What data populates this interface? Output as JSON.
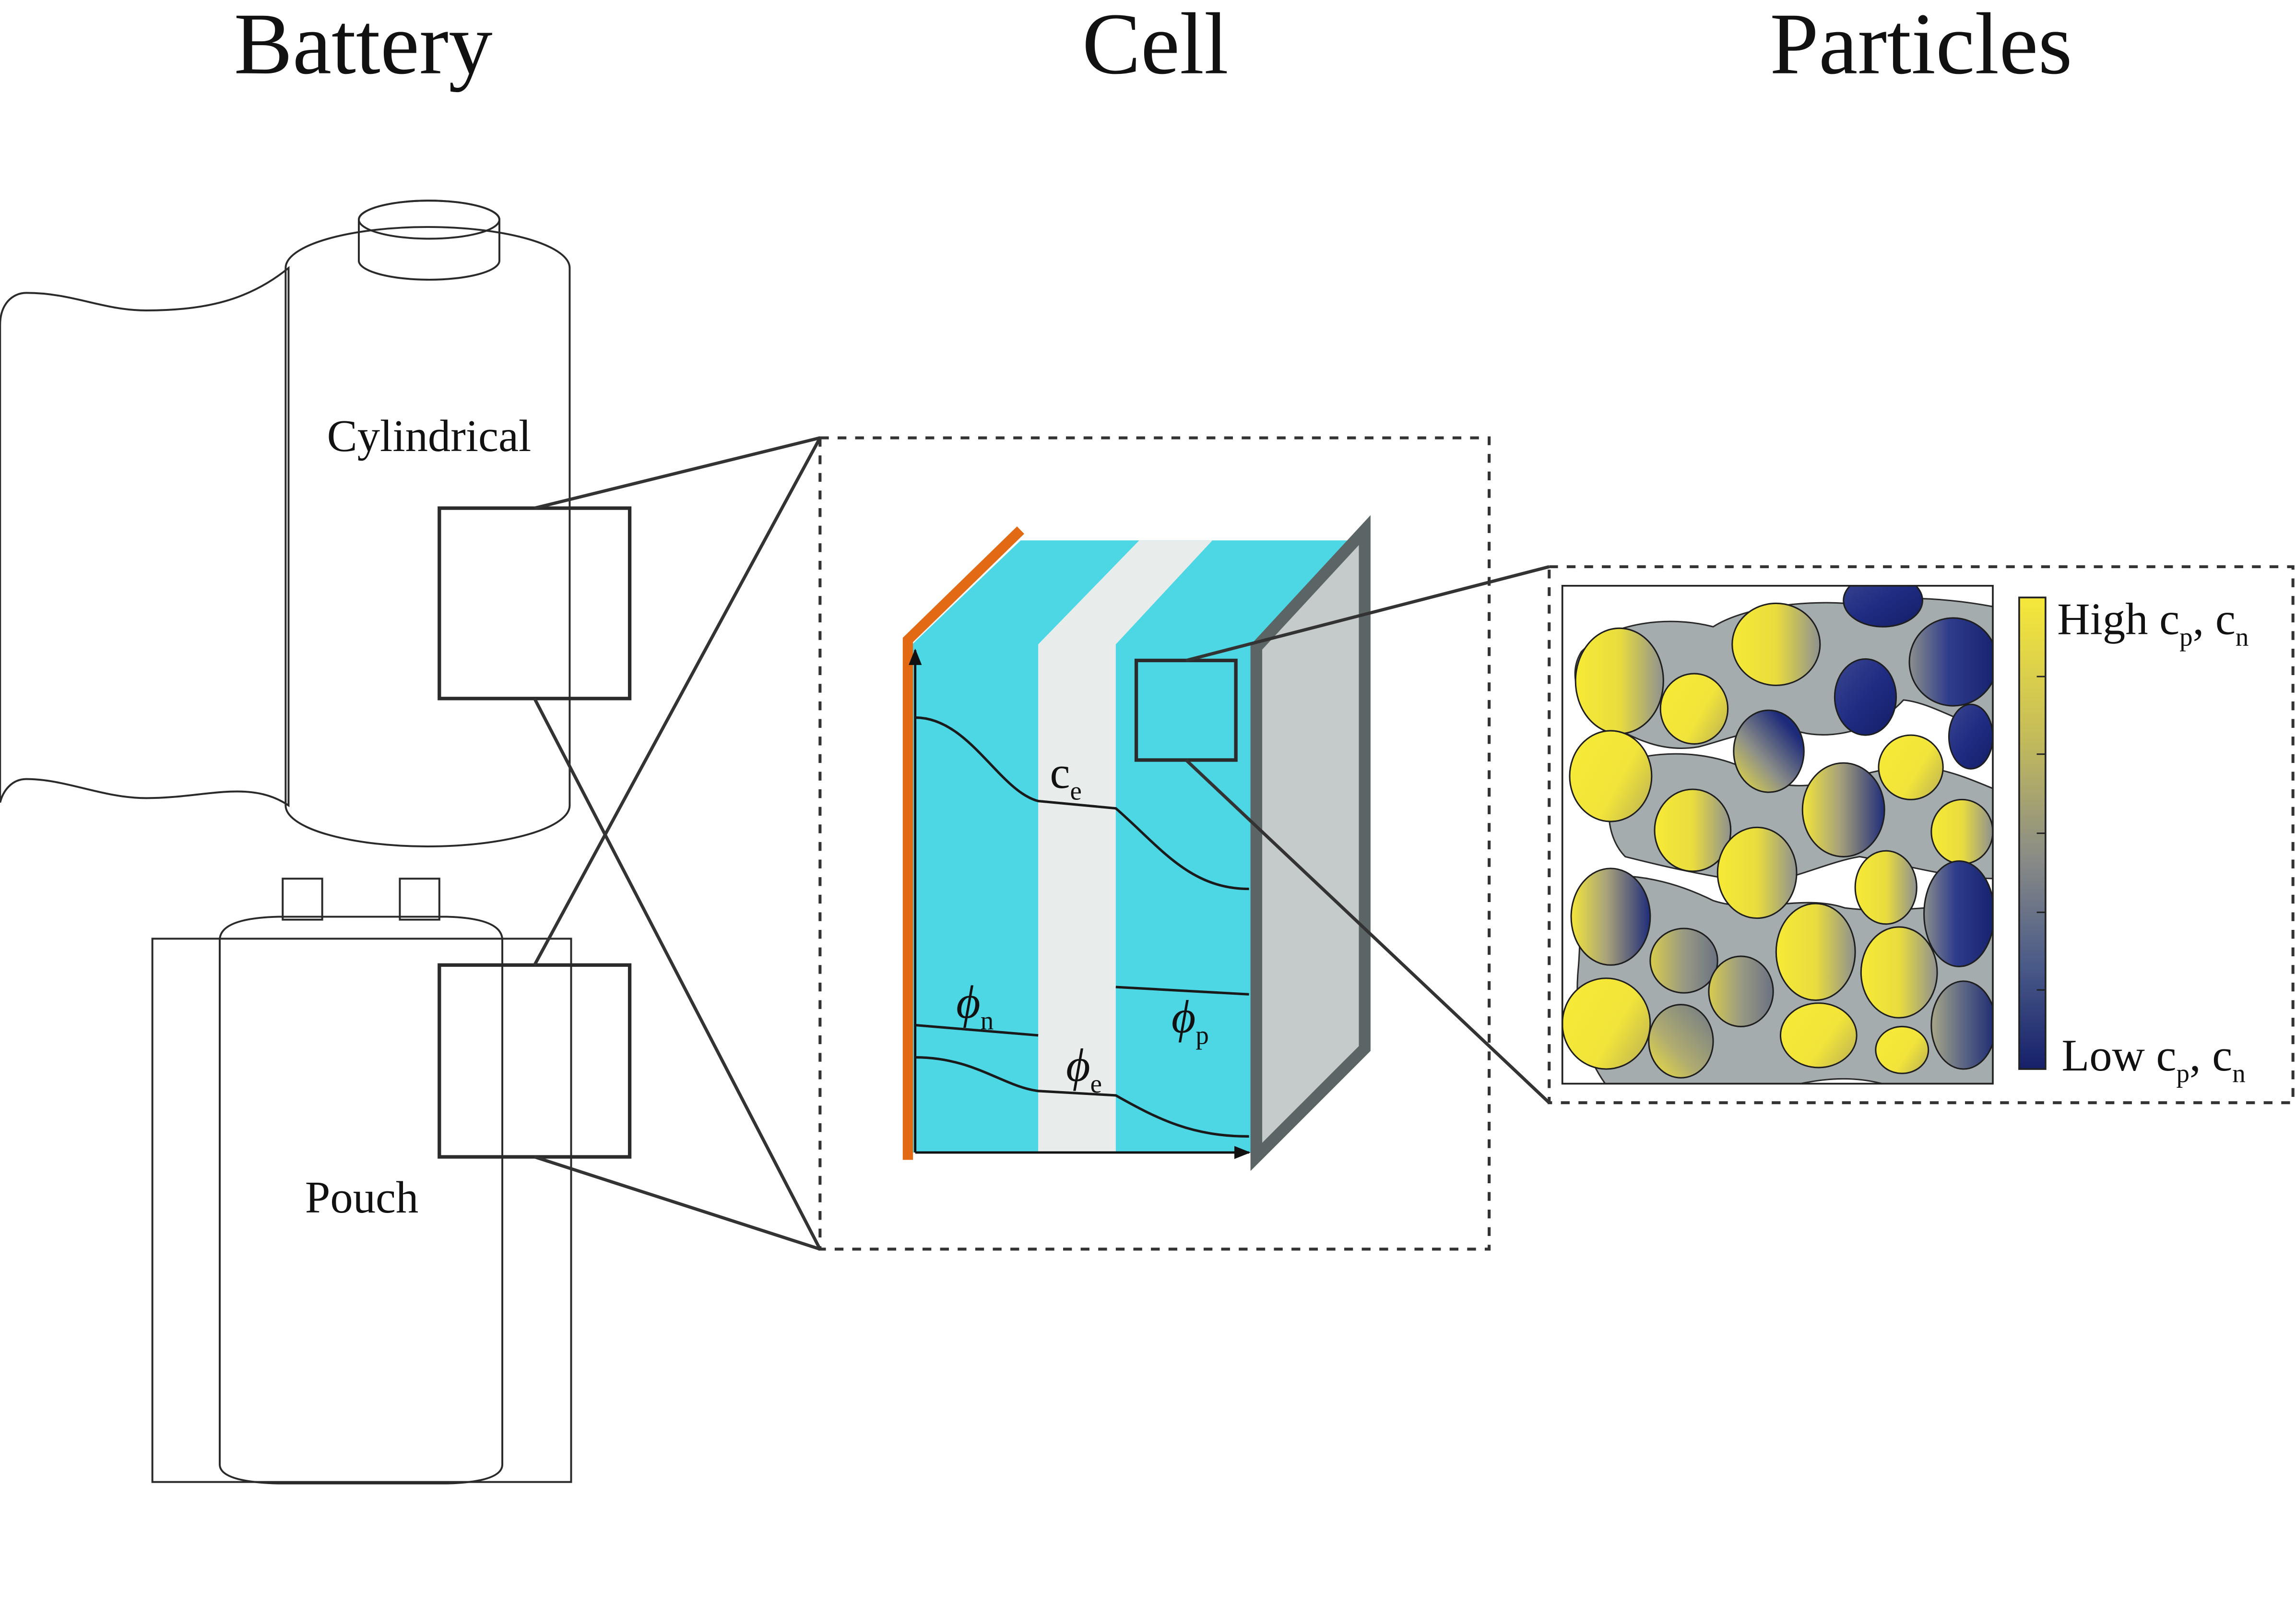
{
  "titles": {
    "battery": "Battery",
    "cell": "Cell",
    "particles": "Particles"
  },
  "battery": {
    "cylindrical": "Cylindrical",
    "pouch": "Pouch"
  },
  "cell": {
    "c_e": {
      "symbol": "c",
      "sub": "e"
    },
    "phi_n": {
      "symbol": "ϕ",
      "sub": "n"
    },
    "phi_e": {
      "symbol": "ϕ",
      "sub": "e"
    },
    "phi_p": {
      "symbol": "ϕ",
      "sub": "p"
    }
  },
  "colorbar": {
    "high": {
      "text": "High c",
      "sub1": "p",
      "mid": ", c",
      "sub2": "n"
    },
    "low": {
      "text": "Low c",
      "sub1": "p",
      "mid": ", c",
      "sub2": "n"
    }
  },
  "colors": {
    "negative_collector": "#e36a14",
    "electrode": "#4dd6e4",
    "separator": "#e8ecea",
    "positive_collector_fill": "#c5cacb",
    "positive_collector_edge": "#5c6566",
    "binder": "#a4acae",
    "high_concentration": "#f6e83a",
    "low_concentration": "#15206a"
  }
}
